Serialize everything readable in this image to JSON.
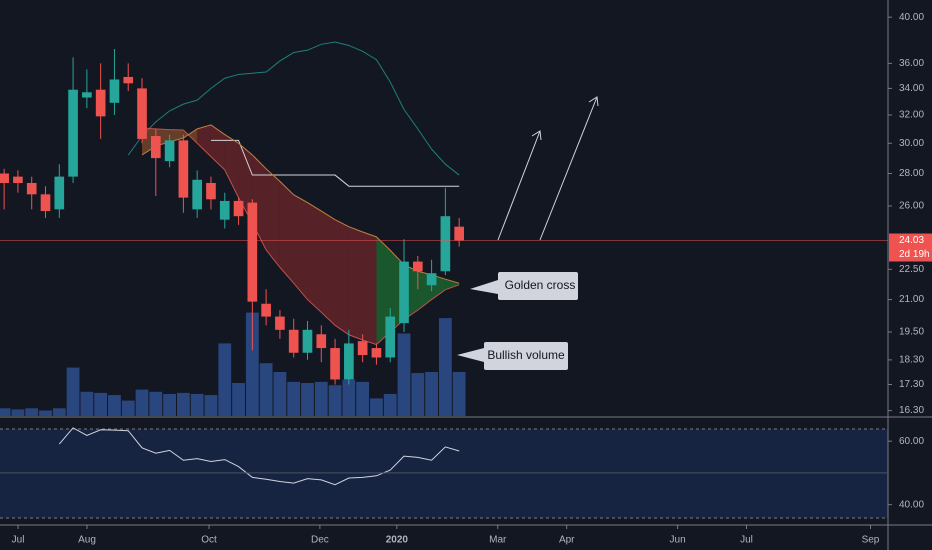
{
  "chart_data": {
    "type": "candlestick",
    "x": [
      0,
      1,
      2,
      3,
      4,
      5,
      6,
      7,
      8,
      9,
      10,
      11,
      12,
      13,
      14,
      15,
      16,
      17,
      18,
      19,
      20,
      21,
      22,
      23,
      24,
      25,
      26,
      27,
      28,
      29,
      30,
      31,
      32,
      33
    ],
    "open": [
      28.0,
      27.8,
      27.4,
      26.7,
      25.8,
      27.8,
      33.3,
      33.9,
      32.9,
      34.9,
      34.0,
      30.5,
      28.8,
      30.2,
      25.8,
      27.4,
      25.2,
      26.3,
      26.2,
      20.8,
      20.2,
      19.6,
      18.6,
      19.4,
      18.8,
      17.5,
      19.1,
      18.8,
      18.4,
      19.9,
      22.9,
      21.7,
      22.4,
      24.8
    ],
    "high": [
      28.3,
      28.2,
      27.8,
      27.2,
      28.6,
      36.5,
      35.5,
      36.0,
      37.2,
      36.0,
      34.8,
      31.0,
      30.6,
      30.6,
      28.2,
      27.8,
      26.8,
      26.5,
      26.4,
      21.5,
      20.5,
      20.1,
      20.0,
      19.8,
      19.2,
      19.6,
      19.4,
      19.0,
      20.6,
      24.1,
      23.2,
      23.0,
      27.1,
      25.3
    ],
    "low": [
      25.8,
      26.8,
      25.8,
      25.3,
      25.3,
      27.4,
      32.5,
      30.3,
      32.0,
      33.8,
      30.0,
      26.6,
      28.4,
      25.6,
      25.3,
      25.8,
      24.7,
      24.9,
      18.7,
      19.8,
      19.2,
      18.4,
      18.3,
      18.2,
      17.3,
      17.3,
      18.2,
      18.1,
      18.2,
      19.5,
      21.5,
      21.4,
      22.2,
      23.7
    ],
    "close": [
      27.4,
      27.4,
      26.7,
      25.7,
      27.8,
      33.9,
      33.7,
      31.9,
      34.7,
      34.4,
      30.3,
      29.0,
      30.2,
      26.5,
      27.6,
      26.4,
      26.3,
      25.4,
      20.9,
      20.2,
      19.6,
      18.6,
      19.6,
      18.8,
      17.5,
      19.0,
      18.5,
      18.4,
      20.2,
      22.9,
      22.4,
      22.3,
      25.4,
      24.03
    ],
    "up_color": "#26a69a",
    "down_color": "#ef5350",
    "volume": [
      7,
      6,
      7,
      5,
      7,
      44,
      22,
      21,
      19,
      14,
      24,
      22,
      20,
      21,
      20,
      19,
      66,
      30,
      94,
      48,
      40,
      31,
      30,
      31,
      28,
      33,
      31,
      16,
      20,
      75,
      39,
      40,
      89,
      40
    ],
    "volume_color": "#2f4f8f",
    "volume_lim": [
      0,
      100
    ],
    "ma_fast": [
      null,
      null,
      null,
      null,
      null,
      null,
      null,
      null,
      null,
      null,
      31.06,
      31.0,
      30.95,
      30.92,
      30.0,
      29.1,
      28.23,
      26.5,
      25.0,
      23.52,
      22.6,
      21.8,
      21.0,
      20.4,
      19.8,
      19.38,
      19.15,
      18.95,
      19.5,
      20.06,
      20.5,
      21.0,
      21.48,
      21.72
    ],
    "ma_slow": [
      null,
      null,
      null,
      null,
      null,
      null,
      null,
      null,
      null,
      null,
      29.21,
      29.8,
      30.1,
      30.36,
      31.0,
      31.28,
      30.6,
      30.0,
      29.21,
      28.3,
      27.5,
      26.67,
      26.2,
      25.7,
      25.2,
      24.8,
      24.5,
      24.23,
      23.5,
      22.74,
      22.4,
      22.22,
      22.0,
      21.8
    ],
    "bb_upper": [
      null,
      null,
      null,
      null,
      null,
      null,
      null,
      null,
      null,
      29.2,
      30.5,
      31.5,
      32.3,
      32.8,
      33.1,
      34.0,
      34.8,
      35.1,
      35.2,
      35.3,
      36.2,
      36.9,
      37.1,
      37.6,
      37.8,
      37.5,
      37.0,
      36.3,
      34.5,
      32.4,
      31.0,
      29.6,
      28.6,
      27.9
    ],
    "step_line": [
      null,
      null,
      null,
      null,
      null,
      null,
      null,
      null,
      null,
      null,
      null,
      null,
      null,
      null,
      null,
      30.2,
      30.2,
      30.2,
      27.9,
      27.9,
      27.9,
      27.9,
      27.9,
      27.9,
      27.9,
      27.2,
      27.2,
      27.2,
      27.2,
      27.2,
      27.2,
      27.2,
      27.2,
      27.2
    ],
    "xlim": [
      -0.3,
      64.1
    ],
    "xticks": [
      {
        "value": 1.01,
        "label": "Jul"
      },
      {
        "value": 6.01,
        "label": "Aug"
      },
      {
        "value": 14.86,
        "label": "Oct"
      },
      {
        "value": 22.9,
        "label": "Dec"
      },
      {
        "value": 28.48,
        "label": "2020"
      },
      {
        "value": 35.8,
        "label": "Mar"
      },
      {
        "value": 40.8,
        "label": "Apr"
      },
      {
        "value": 48.84,
        "label": "Jun"
      },
      {
        "value": 53.84,
        "label": "Jul"
      },
      {
        "value": 62.83,
        "label": "Sep"
      }
    ],
    "ylim": [
      16.1,
      41.6
    ],
    "log_scale": true,
    "yticks": [
      {
        "value": 16.3,
        "label": "16.30"
      },
      {
        "value": 17.3,
        "label": "17.30"
      },
      {
        "value": 18.3,
        "label": "18.30"
      },
      {
        "value": 19.5,
        "label": "19.50"
      },
      {
        "value": 21,
        "label": "21.00"
      },
      {
        "value": 22.5,
        "label": "22.50"
      },
      {
        "value": 26,
        "label": "26.00"
      },
      {
        "value": 28,
        "label": "28.00"
      },
      {
        "value": 30,
        "label": "30.00"
      },
      {
        "value": 32,
        "label": "32.00"
      },
      {
        "value": 34,
        "label": "34.00"
      },
      {
        "value": 36,
        "label": "36.00"
      },
      {
        "value": 40,
        "label": "40.00"
      }
    ],
    "last_price": 24.03,
    "countdown": "2d 19h",
    "annotations": [
      "Golden cross",
      "Bullish volume"
    ],
    "rsi": {
      "values": [
        null,
        null,
        null,
        null,
        59.1,
        64.2,
        61.8,
        63.6,
        63.5,
        63.3,
        57.9,
        56.2,
        57.1,
        54.0,
        54.5,
        53.6,
        54.2,
        52.0,
        48.6,
        48.0,
        47.3,
        46.8,
        48.2,
        47.8,
        46.3,
        48.4,
        48.6,
        49.1,
        50.9,
        55.3,
        54.9,
        54.0,
        58.2,
        56.9
      ],
      "color": "#d1d4dc",
      "ylim": [
        33.6,
        67.3
      ],
      "yticks": [
        {
          "value": 60,
          "label": "60.00"
        },
        {
          "value": 40,
          "label": "40.00"
        }
      ],
      "midline": 50
    }
  }
}
